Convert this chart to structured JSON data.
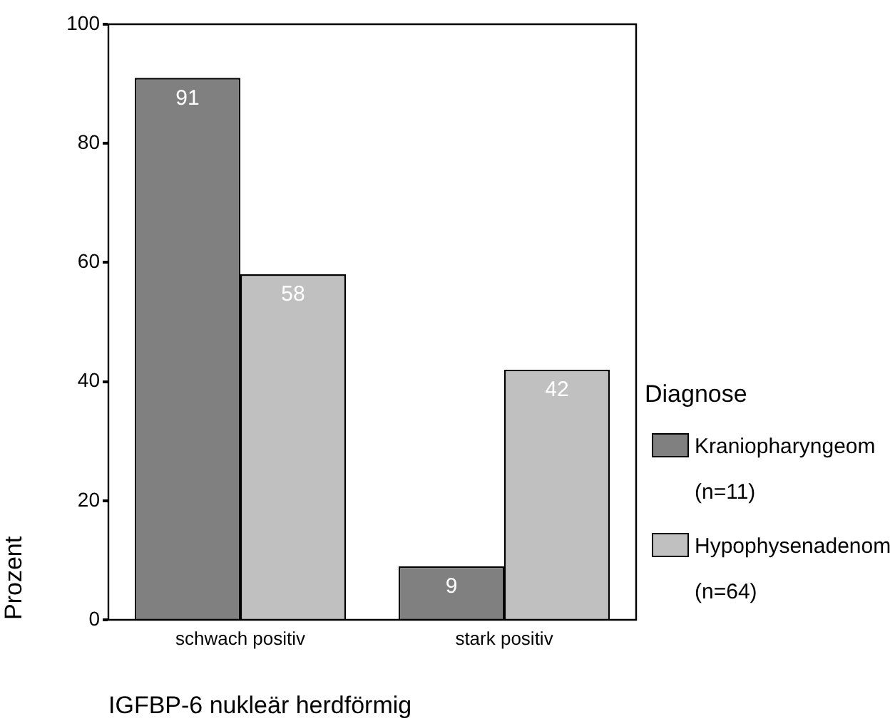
{
  "chart_data": {
    "type": "bar",
    "xlabel": "IGFBP-6 nukleär herdförmig",
    "ylabel": "Prozent",
    "legend_title": "Diagnose",
    "categories": [
      "schwach positiv",
      "stark positiv"
    ],
    "series": [
      {
        "name": "Kraniopharyngeom (n=11)",
        "color": "#808080",
        "values": [
          91,
          9
        ]
      },
      {
        "name": "Hypophysenadenom (n=64)",
        "color": "#c0c0c0",
        "values": [
          58,
          42
        ]
      }
    ],
    "ylim": [
      0,
      100
    ],
    "yticks": [
      0,
      20,
      40,
      60,
      80,
      100
    ],
    "grid": false,
    "legend": "right",
    "data_labels": true
  }
}
